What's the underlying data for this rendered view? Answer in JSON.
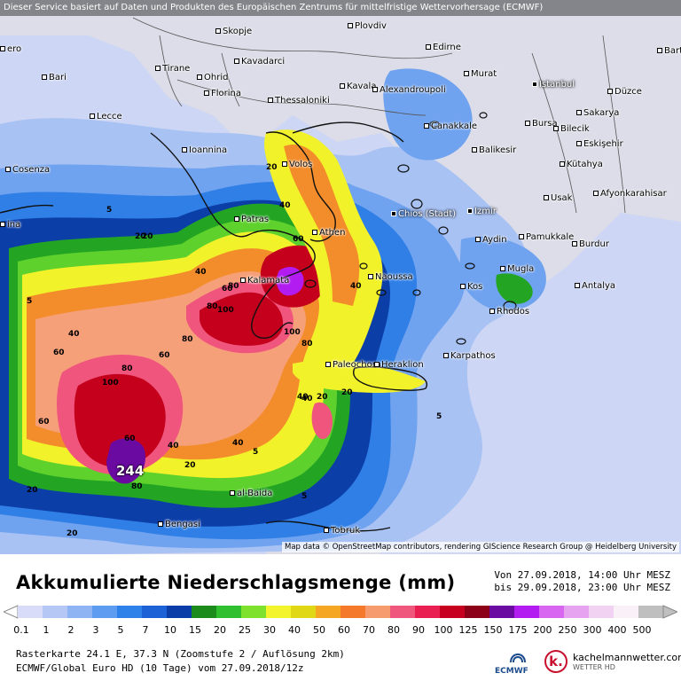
{
  "banner": "Dieser Service basiert auf Daten und Produkten des Europäischen Zentrums für mittelfristige Wettervorhersage (ECMWF)",
  "credit": "Map data © OpenStreetMap contributors, rendering GIScience Research Group @ Heidelberg University",
  "cities": [
    {
      "name": "Skopje"
    },
    {
      "name": "Plovdiv"
    },
    {
      "name": "Edirne"
    },
    {
      "name": "Bartın"
    },
    {
      "name": "Tirane"
    },
    {
      "name": "Kavadarci"
    },
    {
      "name": "Bari"
    },
    {
      "name": "Ohrid"
    },
    {
      "name": "Kavala"
    },
    {
      "name": "Murat"
    },
    {
      "name": "Istanbul"
    },
    {
      "name": "Florina"
    },
    {
      "name": "Thessaloniki"
    },
    {
      "name": "Alexandroupoli"
    },
    {
      "name": "Düzce"
    },
    {
      "name": "Lecce"
    },
    {
      "name": "Canakkale"
    },
    {
      "name": "Sakarya"
    },
    {
      "name": "Bursa"
    },
    {
      "name": "Bilecik"
    },
    {
      "name": "Ioannina"
    },
    {
      "name": "Eskişehir"
    },
    {
      "name": "Cosenza"
    },
    {
      "name": "Volos"
    },
    {
      "name": "Balikesir"
    },
    {
      "name": "Kütahya"
    },
    {
      "name": "Afyonkarahisar"
    },
    {
      "name": "Patras"
    },
    {
      "name": "Chios (Stadt)"
    },
    {
      "name": "Izmir"
    },
    {
      "name": "Usak"
    },
    {
      "name": "ina"
    },
    {
      "name": "Athen"
    },
    {
      "name": "Aydin"
    },
    {
      "name": "Pamukkale"
    },
    {
      "name": "Burdur"
    },
    {
      "name": "Kalamata"
    },
    {
      "name": "Naoussa"
    },
    {
      "name": "Mugla"
    },
    {
      "name": "Kos"
    },
    {
      "name": "Antalya"
    },
    {
      "name": "Rhodos"
    },
    {
      "name": "Karpathos"
    },
    {
      "name": "Paleochora"
    },
    {
      "name": "Heraklion"
    },
    {
      "name": "al-Baida"
    },
    {
      "name": "Bengasi"
    },
    {
      "name": "Tobruk"
    },
    {
      "name": "ero"
    }
  ],
  "contours": [
    "5",
    "20",
    "40",
    "60",
    "80",
    "100",
    "80",
    "60",
    "40",
    "20",
    "5",
    "20",
    "40",
    "60",
    "80",
    "100",
    "40",
    "20",
    "80",
    "60",
    "40",
    "40",
    "20",
    "5",
    "20",
    "40",
    "60",
    "80",
    "100",
    "80",
    "60",
    "40",
    "20",
    "5",
    "20",
    "5"
  ],
  "max_value": "244",
  "title": "Akkumulierte Niederschlagsmenge (mm)",
  "period_from": "Von 27.09.2018, 14:00 Uhr MESZ",
  "period_to": "bis 29.09.2018, 23:00 Uhr MESZ",
  "scale": {
    "ticks": [
      "0.1",
      "1",
      "2",
      "3",
      "5",
      "7",
      "10",
      "15",
      "20",
      "25",
      "30",
      "40",
      "50",
      "60",
      "70",
      "80",
      "90",
      "100",
      "125",
      "150",
      "175",
      "200",
      "250",
      "300",
      "400",
      "500"
    ],
    "colors": [
      "#d8dcf8",
      "#b4c7f5",
      "#8fb4f3",
      "#5d9cf0",
      "#2f81ea",
      "#1c62d6",
      "#0b3da8",
      "#1b8c1b",
      "#2fbf2f",
      "#7de12d",
      "#f4f42c",
      "#e0d815",
      "#f5a623",
      "#f4792a",
      "#f59b6e",
      "#f0577c",
      "#e81f50",
      "#c8001f",
      "#8c0018",
      "#6a0aa0",
      "#b21cf0",
      "#d966f0",
      "#e6a3ef",
      "#f2d2f2",
      "#f9f0f8",
      "#bfbfbf"
    ]
  },
  "info": {
    "line1": "Rasterkarte 24.1 E, 37.3 N (Zoomstufe 2 / Auflösung 2km)",
    "line2": "ECMWF/Global Euro HD (10 Tage) vom 27.09.2018/12z"
  },
  "logos": {
    "ecmwf": "ECMWF",
    "kmw_letter": "k.",
    "kmw_name": "kachelmannwetter.com",
    "kmw_sub": "WETTER HD"
  },
  "colors": {
    "sea_base": "#c9d2f2",
    "land_base": "#dadbe7"
  }
}
